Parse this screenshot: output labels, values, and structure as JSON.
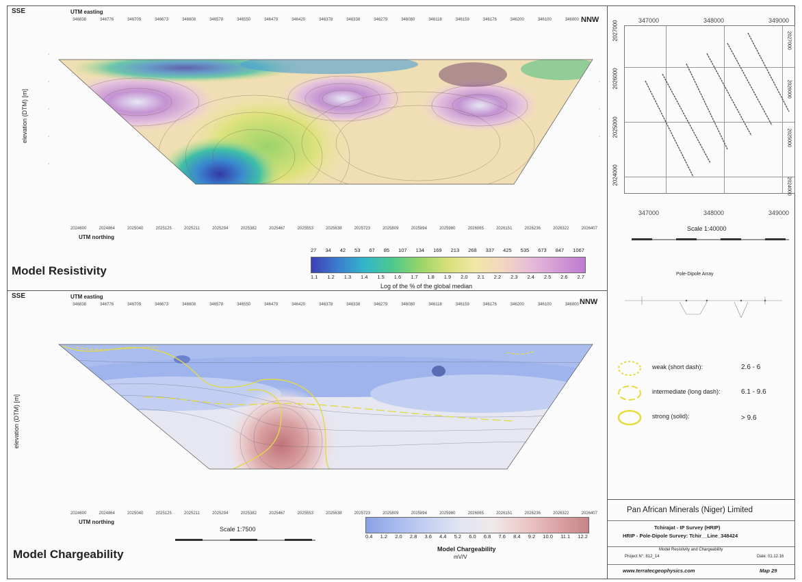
{
  "resistivity": {
    "title": "Model Resistivity",
    "left_dir": "SSE",
    "right_dir": "NNW",
    "easting_label": "UTM easting",
    "northing_label": "UTM northing",
    "y_axis": "elevation (DTM) [m]",
    "colorbar_top": [
      "27",
      "34",
      "42",
      "53",
      "67",
      "85",
      "107",
      "134",
      "169",
      "213",
      "268",
      "337",
      "425",
      "535",
      "673",
      "847",
      "1067"
    ],
    "colorbar_bottom": [
      "1.1",
      "1.2",
      "1.3",
      "1.4",
      "1.5",
      "1.6",
      "1.7",
      "1.8",
      "1.9",
      "2.0",
      "2.1",
      "2.2",
      "2.3",
      "2.4",
      "2.5",
      "2.6",
      "2.7"
    ],
    "colorbar_label": "Log of the % of the global median",
    "colors": [
      "#3d3fb5",
      "#3c7fd0",
      "#33b8c8",
      "#4fc98a",
      "#9ad56a",
      "#d8e07a",
      "#f2e7a8",
      "#f2d6c0",
      "#e6bcd8",
      "#d39bd6",
      "#c07ad0"
    ]
  },
  "chargeability": {
    "title": "Model Chargeability",
    "left_dir": "SSE",
    "right_dir": "NNW",
    "easting_label": "UTM easting",
    "northing_label": "UTM northing",
    "y_axis": "elevation (DTM) [m]",
    "scale": "Scale 1:7500",
    "colorbar_values": [
      "0.4",
      "1.2",
      "2.0",
      "2.8",
      "3.6",
      "4.4",
      "5.2",
      "6.0",
      "6.8",
      "7.6",
      "8.4",
      "9.2",
      "10.0",
      "11.1",
      "12.2"
    ],
    "colorbar_label": "Model Chargeability",
    "colorbar_unit": "mV/V",
    "colors": [
      "#8aa2e6",
      "#a9bbee",
      "#c8d3f2",
      "#e3e6f2",
      "#f0e8ea",
      "#ecc8c8",
      "#dca4a6",
      "#c78486"
    ]
  },
  "map": {
    "top_ticks": [
      "347000",
      "348000",
      "349000"
    ],
    "bottom_ticks": [
      "347000",
      "348000",
      "349000"
    ],
    "left_ticks": [
      "2027000",
      "2026000",
      "2025000",
      "2024000"
    ],
    "right_ticks": [
      "2027000",
      "2026000",
      "2025000",
      "2024000"
    ],
    "scale": "Scale 1:40000"
  },
  "legend": {
    "weak": "weak (short dash):",
    "weak_range": "2.6 - 6",
    "intermediate": "intermediate (long dash):",
    "intermediate_range": "6.1 - 9.6",
    "strong": "strong (solid):",
    "strong_range": "> 9.6",
    "array_title": "Pole-Dipole Array"
  },
  "title_block": {
    "company": "Pan African Minerals (Niger) Limited",
    "survey": "Tchirajat - IP Survey (HRIP)",
    "subtitle": "HRIP - Pole-Dipole Survey: Tchir__Line_348424",
    "desc": "Model Resistivity and Chargeability",
    "project": "Project N°: 812_14",
    "date": "Date: 01.12.16",
    "website": "www.terratecgeophysics.com",
    "map_no": "Map 29"
  }
}
